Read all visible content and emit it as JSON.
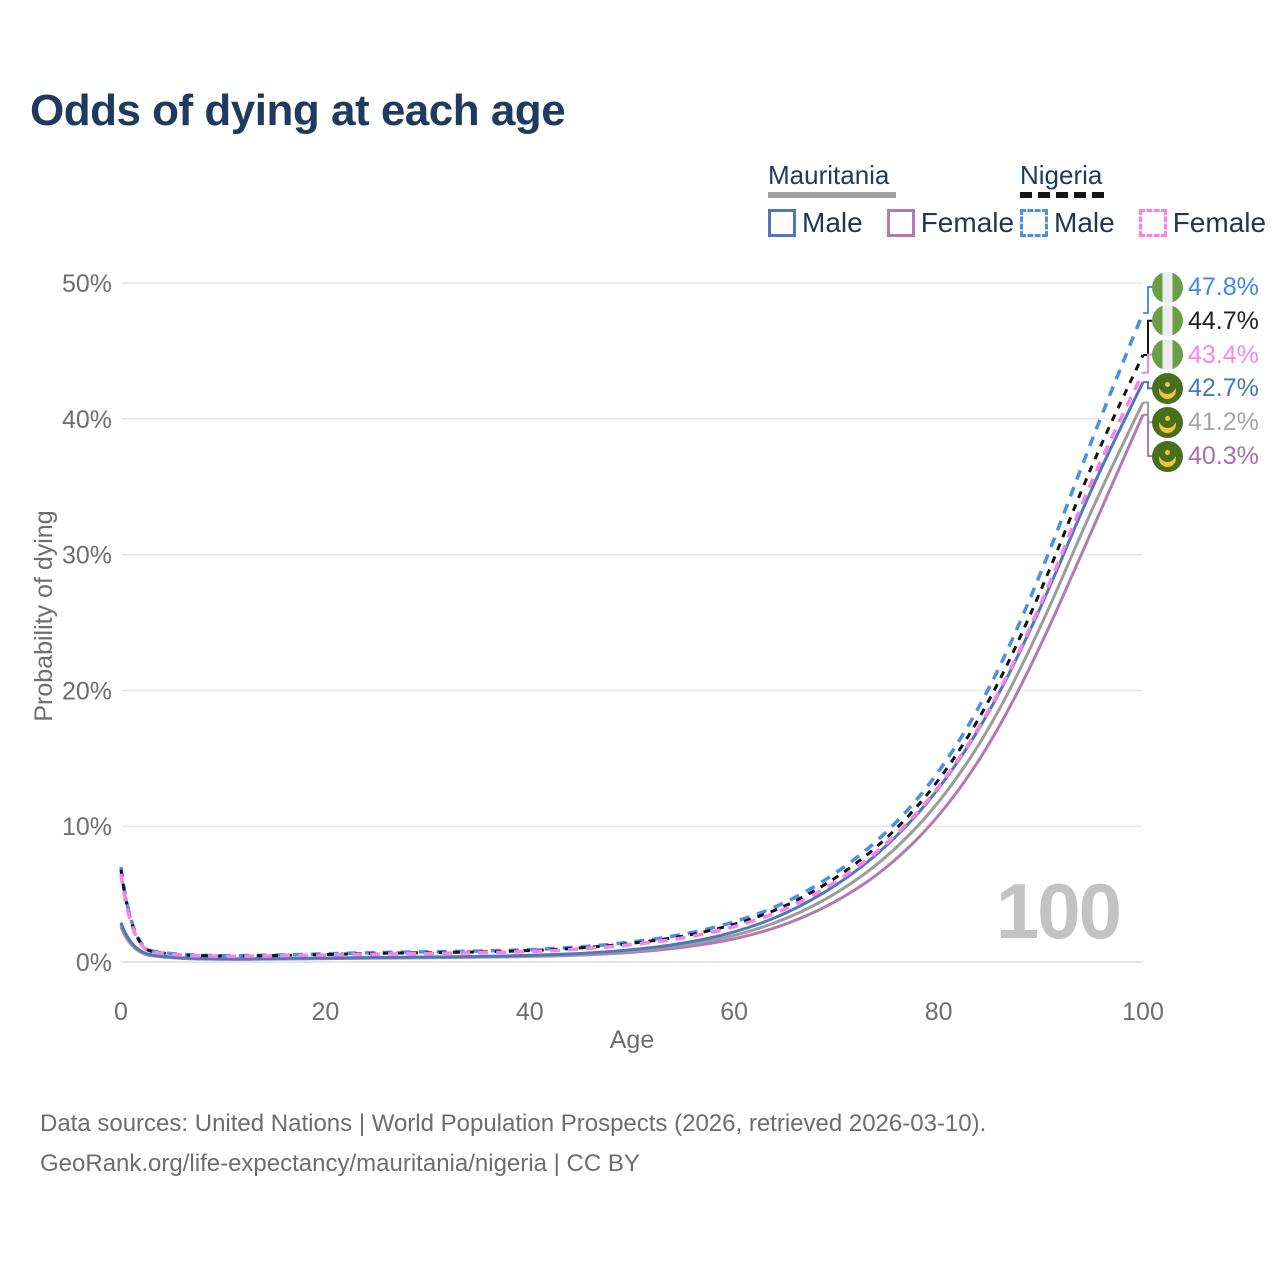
{
  "title": "Odds of dying at each age",
  "legend": {
    "groups": [
      {
        "name": "Mauritania",
        "underline_style": "solid",
        "underline_color": "#a2a2a2",
        "items": [
          {
            "label": "Male",
            "color": "#4d79b8",
            "dashed": false
          },
          {
            "label": "Female",
            "color": "#b279b2",
            "dashed": false
          }
        ]
      },
      {
        "name": "Nigeria",
        "underline_style": "dashed",
        "underline_color": "#141414",
        "items": [
          {
            "label": "Male",
            "color": "#4a90e8",
            "dashed": true
          },
          {
            "label": "Female",
            "color": "#fb80e8",
            "dashed": true
          }
        ]
      }
    ]
  },
  "chart_data": {
    "type": "line",
    "title": "Odds of dying at each age",
    "xlabel": "Age",
    "ylabel": "Probability of dying",
    "xlim": [
      0,
      100
    ],
    "ylim": [
      0,
      50
    ],
    "x_ticks": [
      0,
      20,
      40,
      60,
      80,
      100
    ],
    "y_ticks": [
      {
        "value": 0,
        "label": "0%"
      },
      {
        "value": 10,
        "label": "10%"
      },
      {
        "value": 20,
        "label": "20%"
      },
      {
        "value": 30,
        "label": "30%"
      },
      {
        "value": 40,
        "label": "40%"
      },
      {
        "value": 50,
        "label": "50%"
      }
    ],
    "grid": "horizontal",
    "legend_position": "top-right",
    "watermark": "100",
    "x": [
      0,
      1,
      5,
      10,
      15,
      20,
      25,
      30,
      35,
      40,
      45,
      50,
      55,
      60,
      65,
      70,
      75,
      80,
      85,
      90,
      95,
      100
    ],
    "series": [
      {
        "id": "mauritania_female",
        "name": "Mauritania Female",
        "color": "#b279b2",
        "dash": null,
        "width": 3,
        "values": [
          2.6,
          0.65,
          0.26,
          0.18,
          0.21,
          0.25,
          0.28,
          0.31,
          0.35,
          0.4,
          0.5,
          0.7,
          1.05,
          1.65,
          2.7,
          4.4,
          6.9,
          10.6,
          15.9,
          23.2,
          31.8,
          40.3
        ]
      },
      {
        "id": "mauritania_avg",
        "name": "Mauritania",
        "color": "#9c9c9c",
        "dash": null,
        "width": 3,
        "values": [
          2.75,
          0.7,
          0.28,
          0.2,
          0.23,
          0.27,
          0.3,
          0.34,
          0.38,
          0.44,
          0.56,
          0.8,
          1.2,
          1.9,
          3.1,
          5.0,
          7.7,
          11.6,
          17.1,
          24.6,
          33.4,
          41.2
        ]
      },
      {
        "id": "mauritania_male",
        "name": "Mauritania Male",
        "color": "#4d79b8",
        "dash": null,
        "width": 3,
        "values": [
          2.9,
          0.75,
          0.3,
          0.22,
          0.25,
          0.3,
          0.33,
          0.37,
          0.41,
          0.48,
          0.62,
          0.88,
          1.35,
          2.15,
          3.5,
          5.6,
          8.5,
          12.6,
          18.3,
          26.0,
          35.0,
          42.7
        ]
      },
      {
        "id": "nigeria_male",
        "name": "Nigeria Male",
        "color": "#4a90e8",
        "dash": "10 8",
        "width": 3.5,
        "values": [
          7.0,
          1.1,
          0.55,
          0.45,
          0.5,
          0.6,
          0.7,
          0.75,
          0.8,
          0.9,
          1.1,
          1.45,
          2.0,
          2.9,
          4.3,
          6.5,
          9.5,
          13.8,
          20.0,
          28.5,
          38.5,
          47.8
        ]
      },
      {
        "id": "nigeria_avg",
        "name": "Nigeria",
        "color": "#141414",
        "dash": "7 7",
        "width": 3,
        "values": [
          6.8,
          1.05,
          0.52,
          0.43,
          0.47,
          0.55,
          0.64,
          0.69,
          0.74,
          0.83,
          1.02,
          1.36,
          1.87,
          2.72,
          4.05,
          6.15,
          9.05,
          13.2,
          19.1,
          27.2,
          36.7,
          44.7
        ]
      },
      {
        "id": "nigeria_female",
        "name": "Nigeria Female",
        "color": "#fb80e8",
        "dash": "10 8",
        "width": 3.5,
        "values": [
          6.5,
          1.0,
          0.5,
          0.41,
          0.45,
          0.52,
          0.58,
          0.63,
          0.68,
          0.76,
          0.94,
          1.27,
          1.74,
          2.55,
          3.82,
          5.85,
          8.65,
          12.7,
          18.4,
          26.2,
          35.6,
          43.4
        ]
      }
    ],
    "end_labels": [
      {
        "text": "47.8%",
        "color": "#4189e6",
        "flag": "nigeria",
        "series": "nigeria_male",
        "value": 47.8
      },
      {
        "text": "44.7%",
        "color": "#1f1f1f",
        "flag": "nigeria",
        "series": "nigeria_avg",
        "value": 44.7
      },
      {
        "text": "43.4%",
        "color": "#f985e9",
        "flag": "nigeria",
        "series": "nigeria_female",
        "value": 43.4
      },
      {
        "text": "42.7%",
        "color": "#4678bf",
        "flag": "mauritania",
        "series": "mauritania_male",
        "value": 42.7
      },
      {
        "text": "41.2%",
        "color": "#a6a6a6",
        "flag": "mauritania",
        "series": "mauritania_avg",
        "value": 41.2
      },
      {
        "text": "40.3%",
        "color": "#ad6cb1",
        "flag": "mauritania",
        "series": "mauritania_female",
        "value": 40.3
      }
    ]
  },
  "footer": {
    "line1": "Data sources: United Nations | World Population Prospects (2026, retrieved 2026-03-10).",
    "line2": "GeoRank.org/life-expectancy/mauritania/nigeria | CC BY"
  }
}
